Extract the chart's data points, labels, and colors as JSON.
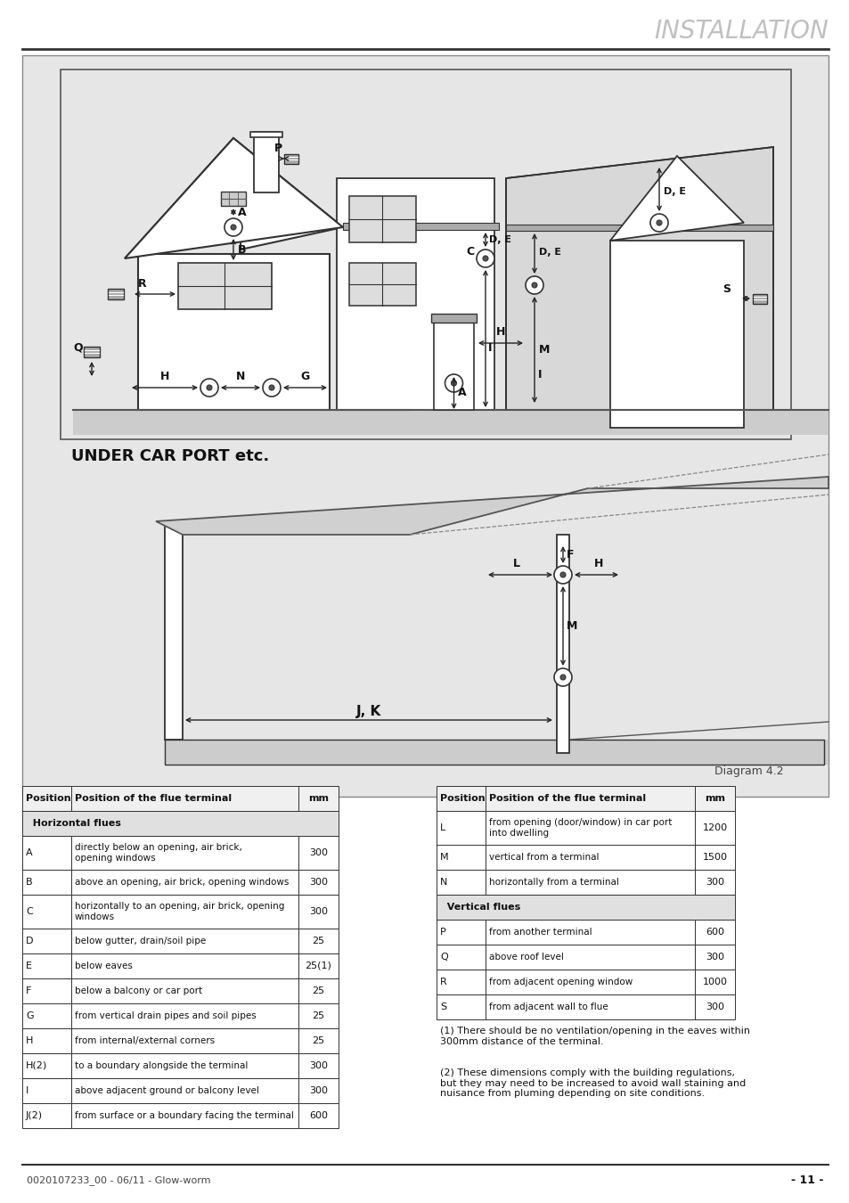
{
  "title": "INSTALLATION",
  "diagram_label": "Diagram 4.2",
  "under_carport_label": "UNDER CAR PORT etc.",
  "left_table_headers": [
    "Position",
    "Position of the flue terminal",
    "mm"
  ],
  "left_section_header": "Horizontal flues",
  "left_rows": [
    [
      "A",
      "directly below an opening, air brick,\nopening windows",
      "300"
    ],
    [
      "B",
      "above an opening, air brick, opening windows",
      "300"
    ],
    [
      "C",
      "horizontally to an opening, air brick, opening\nwindows",
      "300"
    ],
    [
      "D",
      "below gutter, drain/soil pipe",
      "25"
    ],
    [
      "E",
      "below eaves",
      "25(1)"
    ],
    [
      "F",
      "below a balcony or car port",
      "25"
    ],
    [
      "G",
      "from vertical drain pipes and soil pipes",
      "25"
    ],
    [
      "H",
      "from internal/external corners",
      "25"
    ],
    [
      "H(2)",
      "to a boundary alongside the terminal",
      "300"
    ],
    [
      "I",
      "above adjacent ground or balcony level",
      "300"
    ],
    [
      "J(2)",
      "from surface or a boundary facing the terminal",
      "600"
    ]
  ],
  "right_table_headers": [
    "Position",
    "Position of the flue terminal",
    "mm"
  ],
  "right_rows": [
    [
      "L",
      "from opening (door/window) in car port\ninto dwelling",
      "1200"
    ],
    [
      "M",
      "vertical from a terminal",
      "1500"
    ],
    [
      "N",
      "horizontally from a terminal",
      "300"
    ]
  ],
  "right_section_header": "Vertical flues",
  "right_section_rows": [
    [
      "P",
      "from another terminal",
      "600"
    ],
    [
      "Q",
      "above roof level",
      "300"
    ],
    [
      "R",
      "from adjacent opening window",
      "1000"
    ],
    [
      "S",
      "from adjacent wall to flue",
      "300"
    ]
  ],
  "footnote1": "(1) There should be no ventilation/opening in the eaves within\n300mm distance of the terminal.",
  "footnote2": "(2) These dimensions comply with the building regulations,\nbut they may need to be increased to avoid wall staining and\nnuisance from pluming depending on site conditions.",
  "footer_left": "0020107233_00 - 06/11 - Glow-worm",
  "footer_right": "- 11 -"
}
